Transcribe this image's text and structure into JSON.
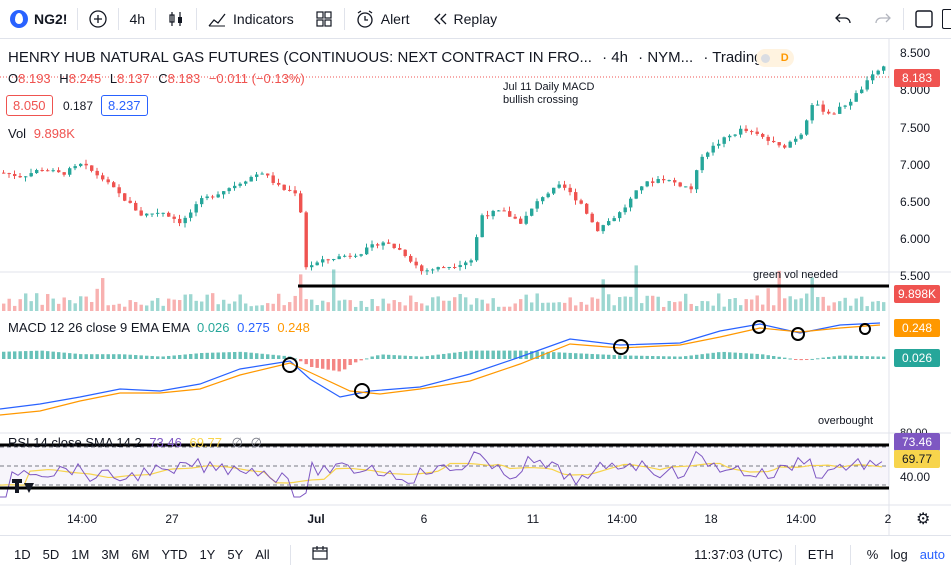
{
  "topbar": {
    "symbol": "NG2!",
    "interval": "4h",
    "indicators_label": "Indicators",
    "alert_label": "Alert",
    "replay_label": "Replay"
  },
  "header": {
    "title": "HENRY HUB NATURAL GAS FUTURES (CONTINUOUS: NEXT CONTRACT IN FRO...",
    "interval": "· 4h",
    "exchange": "· NYM...",
    "source": "· TradingVi...",
    "d_badge": "D"
  },
  "ohlc": {
    "o_label": "O",
    "o": "8.193",
    "h_label": "H",
    "h": "8.245",
    "l_label": "L",
    "l": "8.137",
    "c_label": "C",
    "c": "8.183",
    "change": "−0.011 (−0.13%)"
  },
  "bid": "8.050",
  "spread": "0.187",
  "ask": "8.237",
  "vol_label": "Vol",
  "vol_value": "9.898K",
  "macd": {
    "label": "MACD 12 26 close 9 EMA EMA",
    "hist": "0.026",
    "macd": "0.275",
    "signal": "0.248"
  },
  "rsi": {
    "label": "RSI 14 close SMA 14 2",
    "rsi": "73.46",
    "sma": "69.77"
  },
  "annotations": {
    "macd_note_line1": "Jul 11 Daily MACD",
    "macd_note_line2": "bullish crossing",
    "vol_note": "green vol needed",
    "rsi_note": "overbought"
  },
  "price_axis": {
    "ticks": [
      "8.500",
      "8.000",
      "7.500",
      "7.000",
      "6.500",
      "6.000",
      "5.500"
    ],
    "last_price": "8.183",
    "vol_tag": "9.898K",
    "macd_signal_tag": "0.248",
    "macd_hist_tag": "0.026",
    "rsi_tag": "73.46",
    "rsi_sma_tag": "69.77",
    "rsi_top": "80.00",
    "rsi_mid": "40.00"
  },
  "time_axis": {
    "labels": [
      "14:00",
      "27",
      "Jul",
      "6",
      "11",
      "14:00",
      "18",
      "14:00",
      "2"
    ]
  },
  "bottombar": {
    "ranges": [
      "1D",
      "5D",
      "1M",
      "3M",
      "6M",
      "YTD",
      "1Y",
      "5Y",
      "All"
    ],
    "clock": "11:37:03 (UTC)",
    "session": "ETH",
    "percent": "%",
    "log": "log",
    "auto": "auto"
  },
  "colors": {
    "up": "#26a69a",
    "down": "#ef5350",
    "macd_line": "#2962ff",
    "signal_line": "#ff9800",
    "rsi_line": "#7e57c2",
    "rsi_sma": "#f7d44c"
  }
}
